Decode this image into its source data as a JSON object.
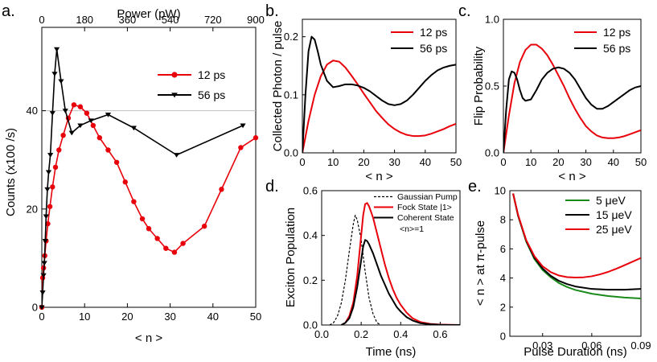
{
  "figure": {
    "panel_labels": [
      "a.",
      "b.",
      "c.",
      "d.",
      "e."
    ]
  },
  "chart_data": [
    {
      "id": "a",
      "type": "line",
      "xlabel": "< n >",
      "ylabel": "Counts (x100 /s)",
      "top_xlabel": "Power (pW)",
      "xlim": [
        0,
        50
      ],
      "ylim": [
        0,
        55
      ],
      "xticks": [
        0,
        10,
        20,
        30,
        40,
        50
      ],
      "yticks": [
        0,
        20,
        40
      ],
      "top_ticks": [
        {
          "n": 0,
          "label": "0"
        },
        {
          "n": 10,
          "label": "180"
        },
        {
          "n": 20,
          "label": "360"
        },
        {
          "n": 30,
          "label": "540"
        },
        {
          "n": 40,
          "label": "720"
        },
        {
          "n": 50,
          "label": "900"
        }
      ],
      "reference_line_y": 40,
      "legend": [
        "12 ps",
        "56 ps"
      ],
      "series": [
        {
          "name": "12 ps",
          "color": "#e8000b",
          "marker": "circle",
          "x": [
            0,
            0.2,
            0.4,
            0.7,
            1,
            1.4,
            1.9,
            2.5,
            3.2,
            4,
            5,
            6.2,
            7.5,
            9,
            10.5,
            12,
            13.5,
            15.5,
            17.5,
            19.5,
            21.5,
            23.5,
            25,
            27,
            29,
            31,
            33,
            38,
            42,
            46.5,
            50
          ],
          "y": [
            0,
            6,
            8,
            10.5,
            13.5,
            17,
            20.5,
            24.5,
            28.5,
            32,
            35,
            38.5,
            41.2,
            40.8,
            39.5,
            37,
            34.5,
            32,
            29.5,
            25.5,
            21.5,
            18,
            16,
            14,
            12,
            11.2,
            13,
            16.5,
            24,
            32.5,
            34.5
          ]
        },
        {
          "name": "56 ps",
          "color": "#000000",
          "marker": "triangle-down",
          "x": [
            0,
            0.2,
            0.4,
            0.6,
            0.8,
            1,
            1.3,
            1.6,
            2,
            2.5,
            3,
            3.5,
            4.5,
            5.5,
            7,
            9,
            11.5,
            15.5,
            21.5,
            31.5,
            47
          ],
          "y": [
            0,
            3,
            6.5,
            9,
            13.5,
            18.5,
            24,
            27.5,
            31,
            39.5,
            47.5,
            52.5,
            46,
            40,
            35.5,
            37,
            38,
            39.2,
            36.5,
            31,
            37
          ]
        }
      ]
    },
    {
      "id": "b",
      "type": "line",
      "xlabel": "< n >",
      "ylabel": "Collected Photon / pulse",
      "xlim": [
        0,
        50
      ],
      "ylim": [
        0,
        0.23
      ],
      "xticks": [
        0,
        10,
        20,
        30,
        40,
        50
      ],
      "yticks": [
        0,
        0.1,
        0.2
      ],
      "ytick_labels": [
        "0.0",
        "0.1",
        "0.2"
      ],
      "legend": [
        "12 ps",
        "56 ps"
      ],
      "series": [
        {
          "name": "12 ps",
          "color": "#e8000b",
          "x": [
            0,
            2,
            4,
            6,
            8,
            10,
            12,
            14,
            16,
            18,
            20,
            22,
            24,
            26,
            28,
            30,
            32,
            34,
            36,
            38,
            40,
            42,
            44,
            46,
            48,
            50
          ],
          "y": [
            0,
            0.055,
            0.1,
            0.132,
            0.152,
            0.159,
            0.157,
            0.147,
            0.133,
            0.118,
            0.102,
            0.087,
            0.072,
            0.06,
            0.049,
            0.041,
            0.035,
            0.031,
            0.029,
            0.029,
            0.03,
            0.033,
            0.037,
            0.041,
            0.046,
            0.05
          ]
        },
        {
          "name": "56 ps",
          "color": "#000000",
          "x": [
            0,
            1,
            2,
            3,
            4,
            5,
            6,
            8,
            10,
            12,
            14,
            16,
            18,
            20,
            22,
            24,
            26,
            28,
            30,
            32,
            34,
            36,
            38,
            40,
            42,
            44,
            46,
            48,
            50
          ],
          "y": [
            0,
            0.1,
            0.175,
            0.2,
            0.195,
            0.175,
            0.152,
            0.124,
            0.113,
            0.115,
            0.118,
            0.118,
            0.116,
            0.112,
            0.106,
            0.098,
            0.09,
            0.084,
            0.082,
            0.084,
            0.09,
            0.1,
            0.112,
            0.124,
            0.134,
            0.142,
            0.147,
            0.15,
            0.152
          ]
        }
      ]
    },
    {
      "id": "c",
      "type": "line",
      "xlabel": "< n >",
      "ylabel": "Flip Probability",
      "xlim": [
        0,
        50
      ],
      "ylim": [
        0,
        1
      ],
      "xticks": [
        0,
        10,
        20,
        30,
        40,
        50
      ],
      "yticks": [
        0,
        0.5,
        1
      ],
      "ytick_labels": [
        "0.0",
        "0.5",
        "1.0"
      ],
      "legend": [
        "12 ps",
        "56 ps"
      ],
      "series": [
        {
          "name": "12 ps",
          "color": "#e8000b",
          "x": [
            0,
            2,
            4,
            6,
            8,
            10,
            12,
            14,
            16,
            18,
            20,
            22,
            24,
            26,
            28,
            30,
            32,
            34,
            36,
            38,
            40,
            42,
            44,
            46,
            48,
            50
          ],
          "y": [
            0,
            0.28,
            0.52,
            0.68,
            0.77,
            0.81,
            0.81,
            0.78,
            0.73,
            0.66,
            0.58,
            0.5,
            0.41,
            0.33,
            0.26,
            0.2,
            0.16,
            0.13,
            0.115,
            0.11,
            0.11,
            0.115,
            0.125,
            0.14,
            0.155,
            0.17
          ]
        },
        {
          "name": "56 ps",
          "color": "#000000",
          "x": [
            0,
            1,
            2,
            3,
            4,
            5,
            6,
            7,
            8,
            10,
            12,
            14,
            16,
            18,
            20,
            22,
            24,
            26,
            28,
            30,
            32,
            34,
            36,
            38,
            40,
            42,
            44,
            46,
            48,
            50
          ],
          "y": [
            0,
            0.32,
            0.55,
            0.61,
            0.6,
            0.55,
            0.47,
            0.41,
            0.39,
            0.4,
            0.47,
            0.55,
            0.6,
            0.63,
            0.64,
            0.63,
            0.6,
            0.55,
            0.48,
            0.41,
            0.36,
            0.33,
            0.33,
            0.35,
            0.38,
            0.41,
            0.44,
            0.47,
            0.49,
            0.5
          ]
        }
      ]
    },
    {
      "id": "d",
      "type": "line",
      "xlabel": "Time (ns)",
      "ylabel": "Exciton Population",
      "xlim": [
        0,
        0.7
      ],
      "ylim": [
        0,
        0.6
      ],
      "xticks": [
        0,
        0.2,
        0.4,
        0.6
      ],
      "xtick_labels": [
        "0.0",
        "0.2",
        "0.4",
        "0.6"
      ],
      "yticks": [
        0,
        0.2,
        0.4,
        0.6
      ],
      "ytick_labels": [
        "0.0",
        "0.2",
        "0.4",
        "0.6"
      ],
      "legend": [
        "Gaussian Pump",
        "Fock State |1>",
        "Coherent State",
        "<n>=1"
      ],
      "series": [
        {
          "name": "Gaussian Pump",
          "color": "#000000",
          "dash": true,
          "x": [
            0.04,
            0.06,
            0.08,
            0.1,
            0.12,
            0.14,
            0.16,
            0.17,
            0.18,
            0.2,
            0.22,
            0.24,
            0.26,
            0.28,
            0.3
          ],
          "y": [
            0,
            0.01,
            0.04,
            0.1,
            0.2,
            0.33,
            0.45,
            0.49,
            0.47,
            0.38,
            0.24,
            0.12,
            0.05,
            0.01,
            0
          ]
        },
        {
          "name": "Fock State |1>",
          "color": "#e8000b",
          "x": [
            0.1,
            0.12,
            0.14,
            0.16,
            0.18,
            0.2,
            0.21,
            0.22,
            0.23,
            0.24,
            0.26,
            0.28,
            0.3,
            0.32,
            0.34,
            0.36,
            0.38,
            0.4,
            0.43,
            0.46,
            0.5,
            0.55,
            0.6,
            0.65,
            0.7
          ],
          "y": [
            0,
            0.01,
            0.04,
            0.1,
            0.22,
            0.4,
            0.49,
            0.54,
            0.545,
            0.53,
            0.48,
            0.41,
            0.34,
            0.27,
            0.21,
            0.16,
            0.12,
            0.09,
            0.055,
            0.03,
            0.013,
            0.005,
            0.002,
            0.001,
            0
          ]
        },
        {
          "name": "Coherent State",
          "color": "#000000",
          "x": [
            0.1,
            0.12,
            0.14,
            0.16,
            0.18,
            0.2,
            0.21,
            0.22,
            0.23,
            0.24,
            0.26,
            0.28,
            0.3,
            0.32,
            0.34,
            0.36,
            0.38,
            0.4,
            0.43,
            0.46,
            0.5,
            0.55,
            0.6,
            0.65,
            0.7
          ],
          "y": [
            0,
            0.01,
            0.03,
            0.08,
            0.17,
            0.29,
            0.35,
            0.38,
            0.375,
            0.36,
            0.32,
            0.27,
            0.22,
            0.18,
            0.14,
            0.11,
            0.08,
            0.06,
            0.035,
            0.02,
            0.008,
            0.003,
            0.001,
            0,
            0
          ]
        }
      ]
    },
    {
      "id": "e",
      "type": "line",
      "xlabel": "Pulse Duration (ns)",
      "ylabel": "< n > at π-pulse",
      "xlim": [
        0.01,
        0.09
      ],
      "ylim": [
        0,
        10
      ],
      "xticks": [
        0.03,
        0.06,
        0.09
      ],
      "yticks": [
        0,
        2,
        4,
        6,
        8,
        10
      ],
      "legend": [
        "5 μeV",
        "15 μeV",
        "25 μeV"
      ],
      "series": [
        {
          "name": "5 μeV",
          "color": "#1a8a1a",
          "x": [
            0.012,
            0.015,
            0.02,
            0.025,
            0.03,
            0.035,
            0.04,
            0.045,
            0.05,
            0.06,
            0.07,
            0.08,
            0.09
          ],
          "y": [
            9.8,
            8.3,
            6.5,
            5.3,
            4.55,
            4.05,
            3.65,
            3.38,
            3.18,
            2.92,
            2.76,
            2.66,
            2.6
          ]
        },
        {
          "name": "15 μeV",
          "color": "#000000",
          "x": [
            0.012,
            0.015,
            0.02,
            0.025,
            0.03,
            0.035,
            0.04,
            0.045,
            0.05,
            0.06,
            0.07,
            0.08,
            0.09
          ],
          "y": [
            9.8,
            8.3,
            6.55,
            5.4,
            4.65,
            4.15,
            3.8,
            3.58,
            3.42,
            3.25,
            3.2,
            3.2,
            3.25
          ]
        },
        {
          "name": "25 μeV",
          "color": "#e8000b",
          "x": [
            0.012,
            0.015,
            0.02,
            0.025,
            0.03,
            0.035,
            0.04,
            0.045,
            0.05,
            0.055,
            0.06,
            0.065,
            0.07,
            0.075,
            0.08,
            0.085,
            0.09
          ],
          "y": [
            9.8,
            8.35,
            6.6,
            5.5,
            4.8,
            4.4,
            4.17,
            4.06,
            4.03,
            4.05,
            4.12,
            4.25,
            4.42,
            4.64,
            4.88,
            5.13,
            5.38
          ]
        }
      ]
    }
  ]
}
